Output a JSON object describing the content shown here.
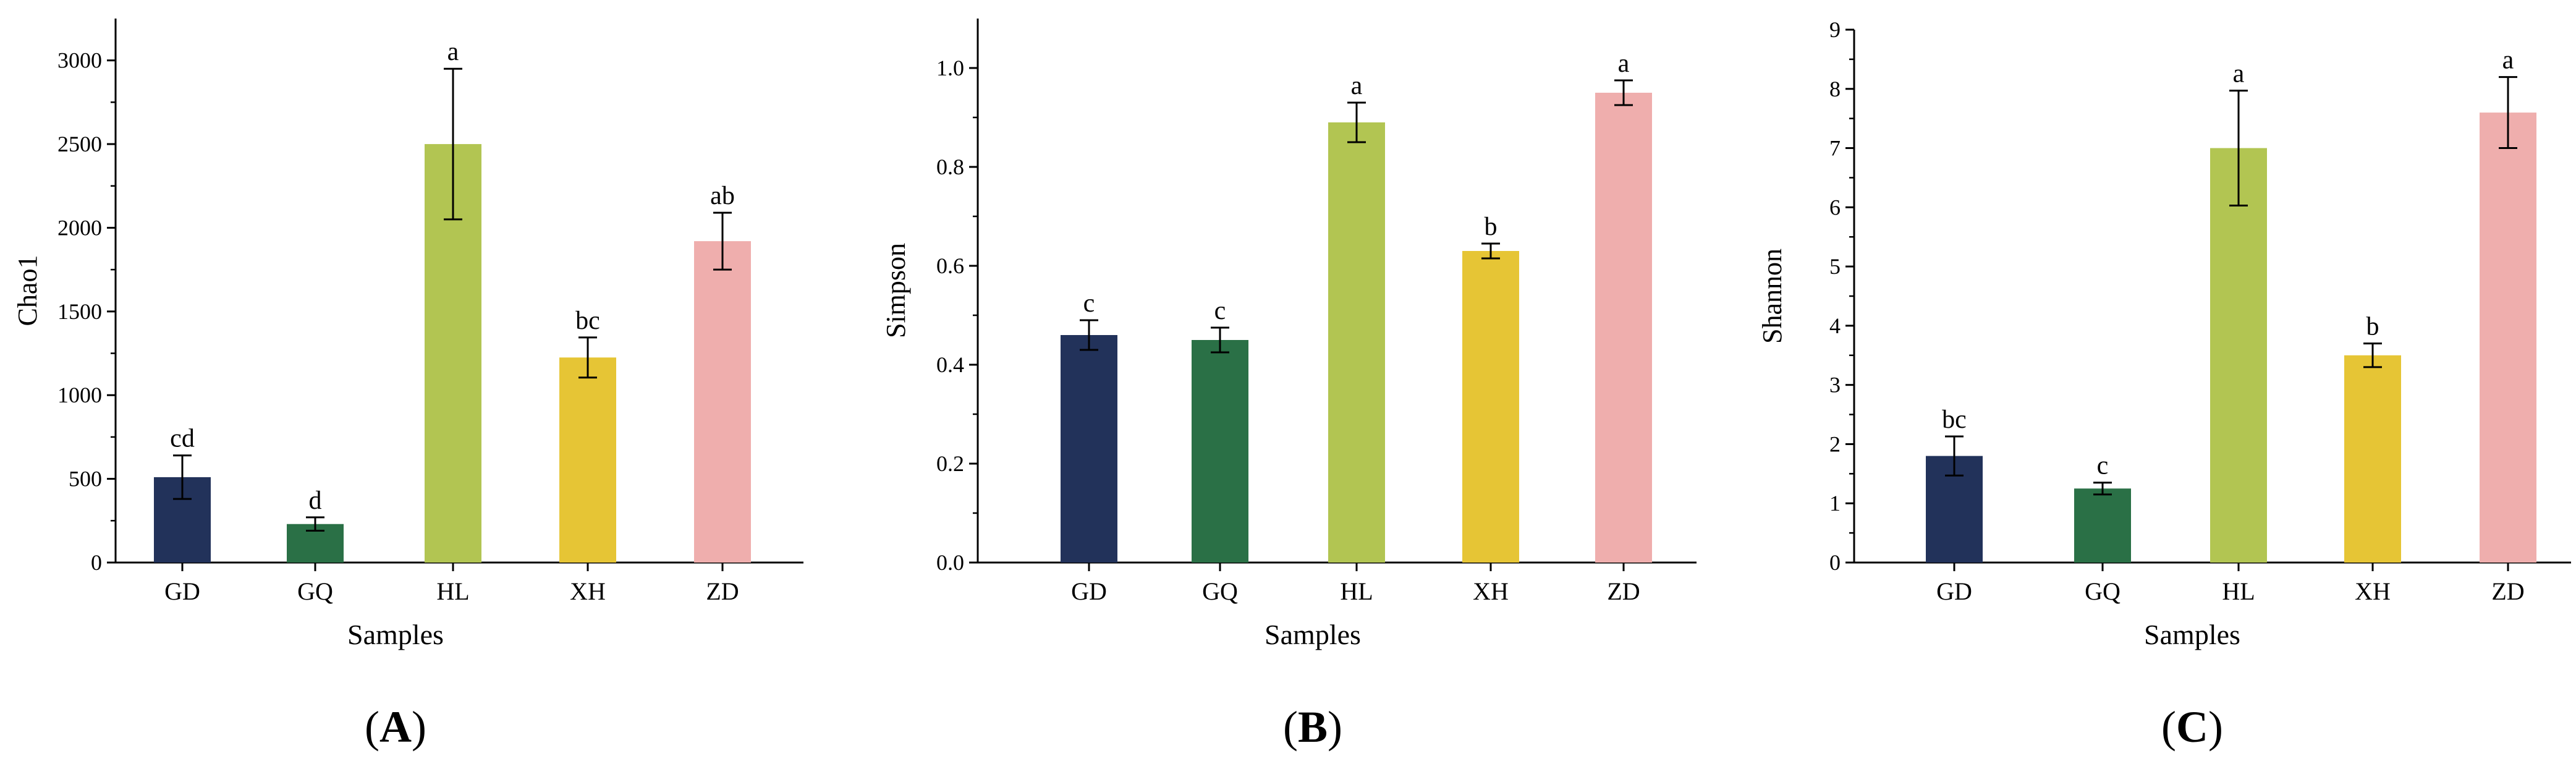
{
  "colors": {
    "GD": "#22325A",
    "GQ": "#2A7046",
    "HL": "#B2C552",
    "XH": "#E6C535",
    "ZD": "#EFAEAD",
    "axis": "#000000"
  },
  "chart_data": [
    {
      "type": "bar",
      "panel_label": "(A)",
      "title": "",
      "xlabel": "Samples",
      "ylabel": "Chao1",
      "categories": [
        "GD",
        "GQ",
        "HL",
        "XH",
        "ZD"
      ],
      "values": [
        510,
        230,
        2500,
        1225,
        1920
      ],
      "errors": [
        130,
        40,
        450,
        120,
        170
      ],
      "letters": [
        "cd",
        "d",
        "a",
        "bc",
        "ab"
      ],
      "ylim": [
        0,
        3250
      ],
      "yticks": [
        0,
        500,
        1000,
        1500,
        2000,
        2500,
        3000
      ],
      "ytick_labels": [
        "0",
        "500",
        "1000",
        "1500",
        "2000",
        "2500",
        "3000"
      ]
    },
    {
      "type": "bar",
      "panel_label": "(B)",
      "title": "",
      "xlabel": "Samples",
      "ylabel": "Simpson",
      "categories": [
        "GD",
        "GQ",
        "HL",
        "XH",
        "ZD"
      ],
      "values": [
        0.46,
        0.45,
        0.89,
        0.63,
        0.95
      ],
      "errors": [
        0.03,
        0.025,
        0.04,
        0.015,
        0.025
      ],
      "letters": [
        "c",
        "c",
        "a",
        "b",
        "a"
      ],
      "ylim": [
        0,
        1.1
      ],
      "yticks": [
        0,
        0.2,
        0.4,
        0.6,
        0.8,
        1.0
      ],
      "ytick_labels": [
        "0.0",
        "0.2",
        "0.4",
        "0.6",
        "0.8",
        "1.0"
      ]
    },
    {
      "type": "bar",
      "panel_label": "(C)",
      "title": "",
      "xlabel": "Samples",
      "ylabel": "Shannon",
      "categories": [
        "GD",
        "GQ",
        "HL",
        "XH",
        "ZD"
      ],
      "values": [
        1.8,
        1.25,
        7.0,
        3.5,
        7.6
      ],
      "errors": [
        0.33,
        0.1,
        0.97,
        0.2,
        0.6
      ],
      "letters": [
        "bc",
        "c",
        "a",
        "b",
        "a"
      ],
      "ylim": [
        0,
        9
      ],
      "yticks": [
        0,
        1,
        2,
        3,
        4,
        5,
        6,
        7,
        8,
        9
      ],
      "ytick_labels": [
        "0",
        "1",
        "2",
        "3",
        "4",
        "5",
        "6",
        "7",
        "8",
        "9"
      ]
    }
  ]
}
